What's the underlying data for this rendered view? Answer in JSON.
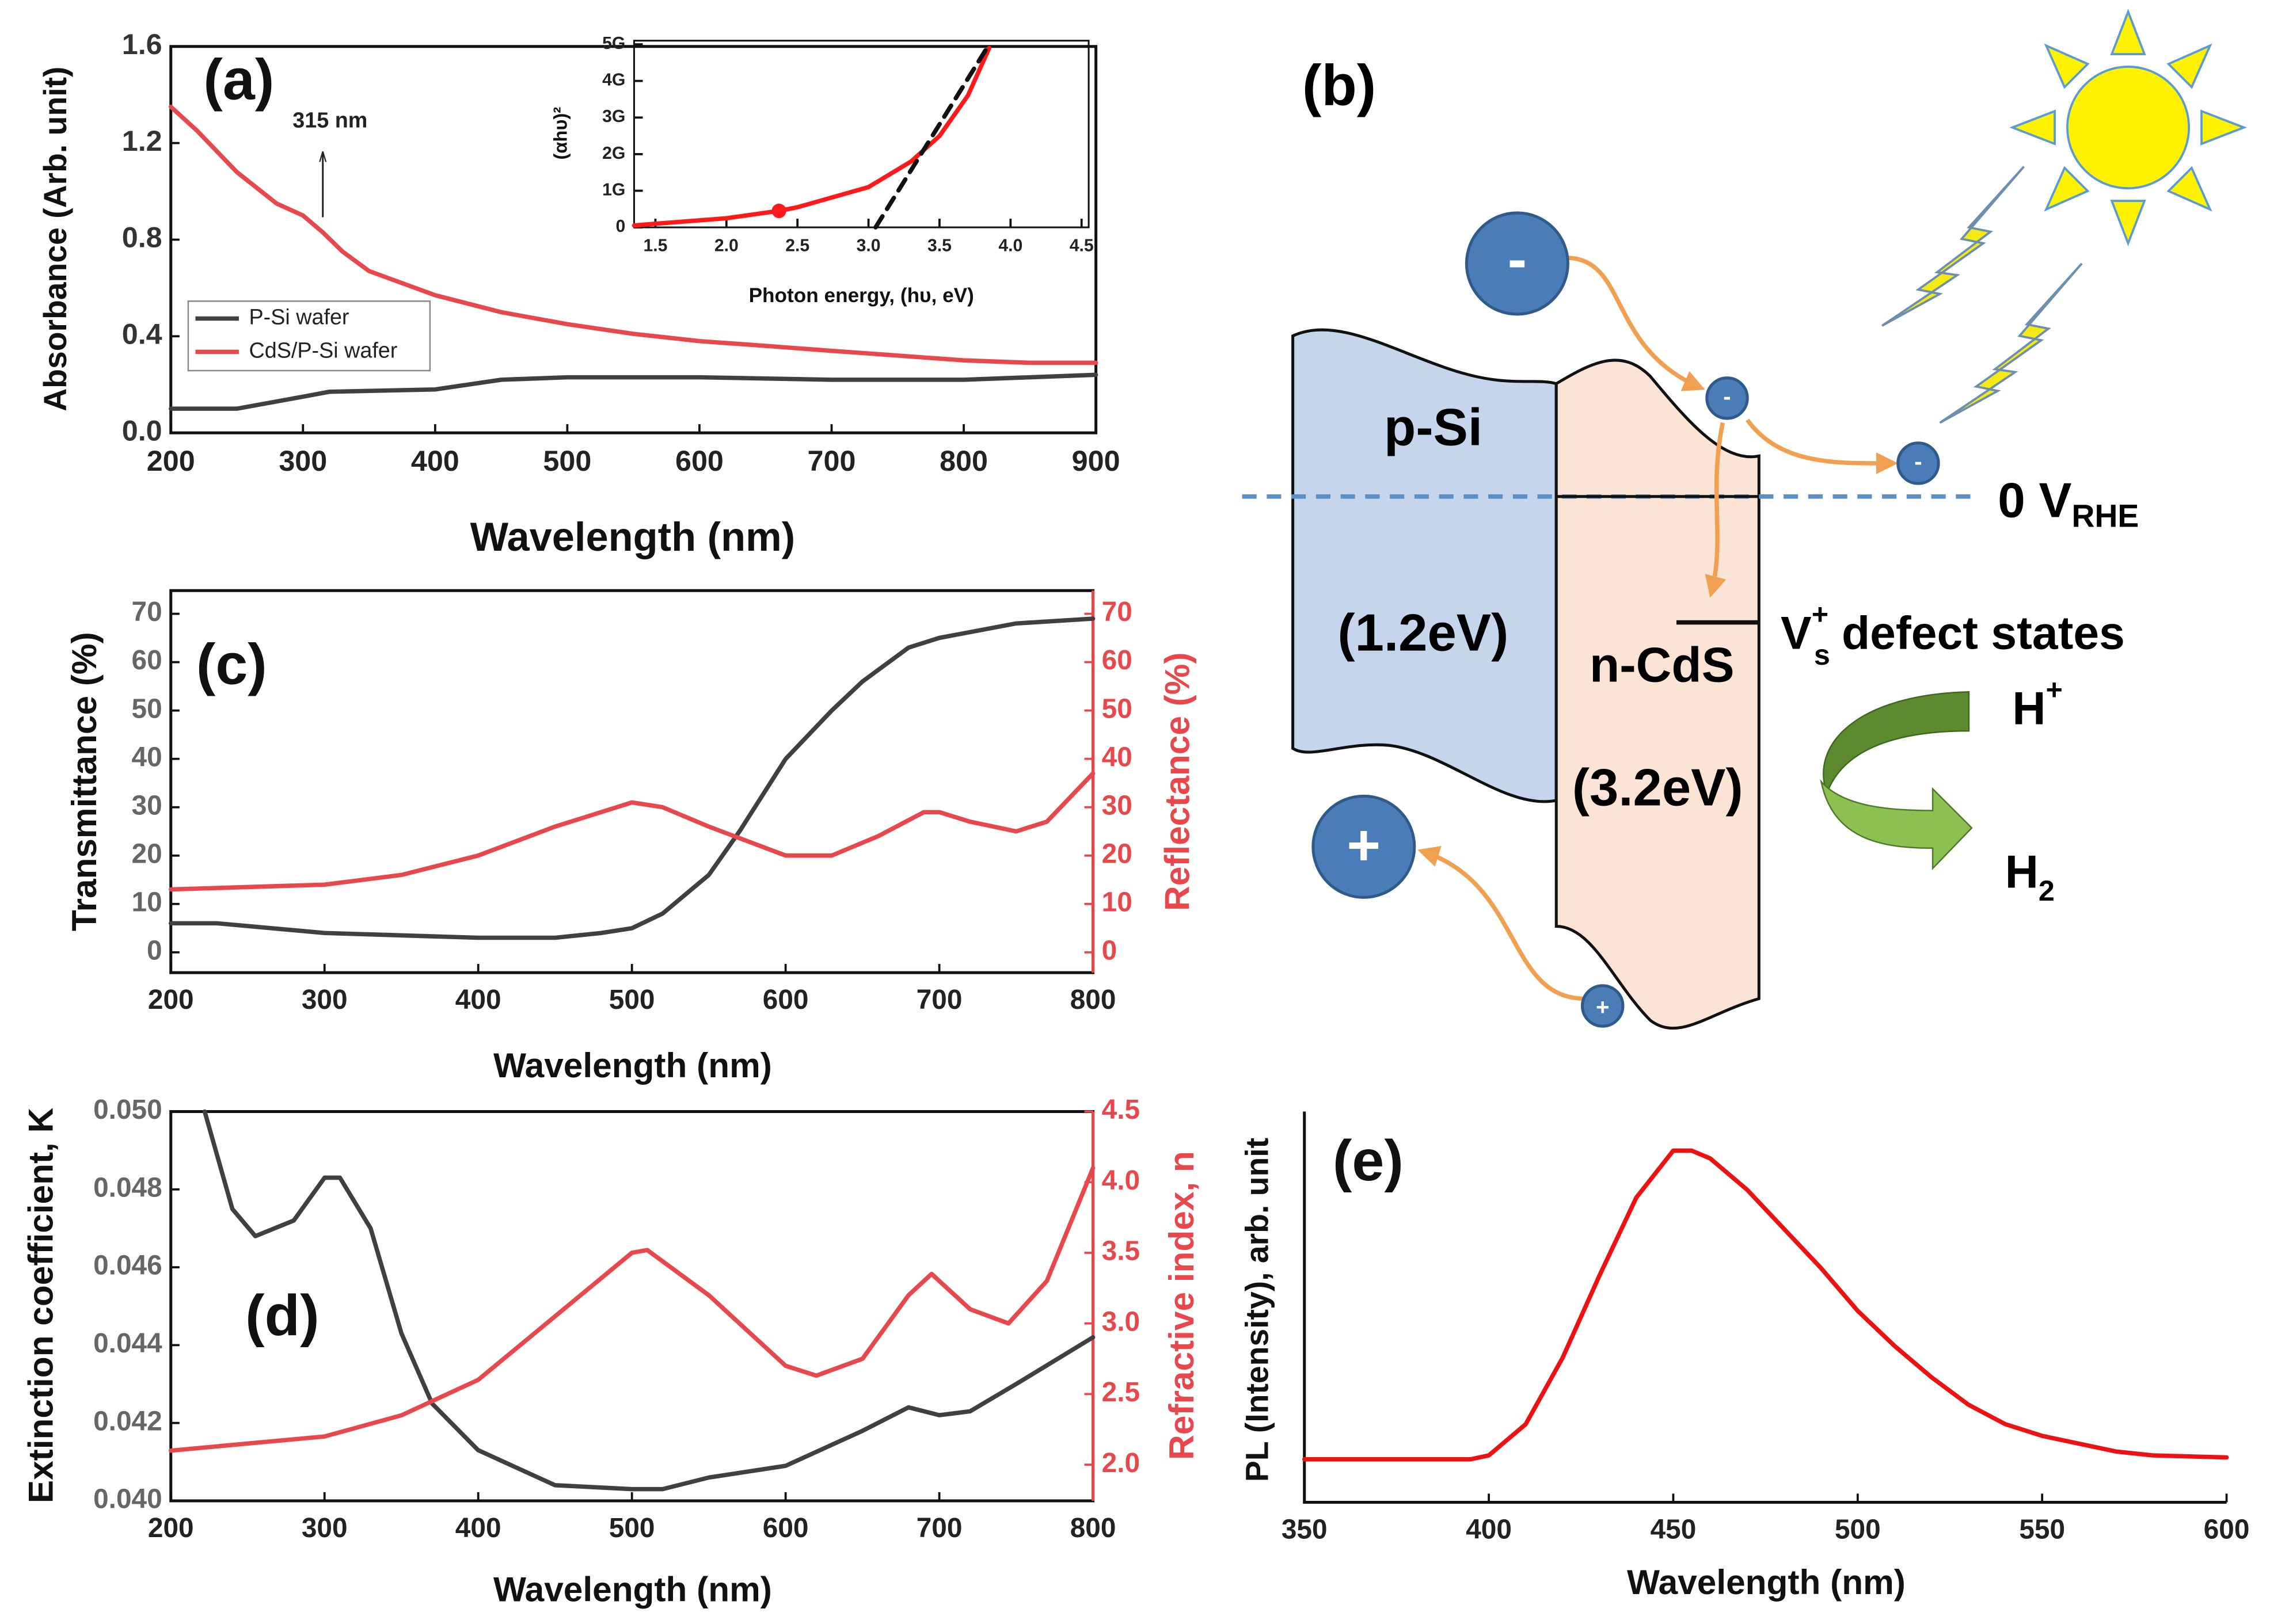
{
  "chart_data": [
    {
      "type": "line",
      "panel_label": "(a)",
      "xlabel": "Wavelength (nm)",
      "ylabel": "Absorbance (Arb. unit)",
      "xlim": [
        200,
        900
      ],
      "ylim": [
        0,
        1.6
      ],
      "xticks": [
        200,
        300,
        400,
        500,
        600,
        700,
        800,
        900
      ],
      "yticks": [
        {
          "value": 0,
          "label": "0.0"
        },
        0.4,
        0.8,
        1.2,
        1.6
      ],
      "legend": "lower left",
      "annotations": [
        {
          "text": "315 nm",
          "x": 315
        }
      ],
      "series": [
        {
          "name": "P-Si wafer",
          "color": "#404040",
          "x": [
            200,
            250,
            300,
            320,
            400,
            450,
            500,
            600,
            700,
            800,
            900
          ],
          "values": [
            0.1,
            0.1,
            0.15,
            0.17,
            0.18,
            0.22,
            0.23,
            0.23,
            0.22,
            0.22,
            0.24
          ]
        },
        {
          "name": "CdS/P-Si wafer",
          "color": "#e8474c",
          "x": [
            200,
            220,
            250,
            280,
            300,
            315,
            330,
            350,
            400,
            450,
            500,
            550,
            600,
            650,
            700,
            750,
            800,
            850,
            900
          ],
          "values": [
            1.35,
            1.25,
            1.08,
            0.95,
            0.9,
            0.83,
            0.75,
            0.67,
            0.57,
            0.5,
            0.45,
            0.41,
            0.38,
            0.36,
            0.34,
            0.32,
            0.3,
            0.29,
            0.29
          ]
        }
      ]
    },
    {
      "type": "line",
      "xlabel": "Photon energy, (hυ, eV)",
      "ylabel": "(αhυ)²",
      "xlim": [
        1.35,
        4.55
      ],
      "ylim": [
        0,
        5.1
      ],
      "xticks": [
        1.5,
        {
          "value": 2,
          "label": "2.0"
        },
        2.5,
        {
          "value": 3,
          "label": "3.0"
        },
        3.5,
        {
          "value": 4,
          "label": "4.0"
        },
        4.5
      ],
      "yticks": [
        0,
        {
          "value": 1,
          "label": "1G"
        },
        {
          "value": 2,
          "label": "2G"
        },
        {
          "value": 3,
          "label": "3G"
        },
        {
          "value": 4,
          "label": "4G"
        },
        {
          "value": 5,
          "label": "5G"
        }
      ],
      "points": [
        {
          "x": 2.37,
          "y": 0.45,
          "color": "#ff1a1a"
        }
      ],
      "series": [
        {
          "color": "#ff1a1a",
          "linestyle": "solid",
          "x": [
            1.35,
            1.5,
            2.0,
            2.37,
            2.5,
            3.0,
            3.3,
            3.5,
            3.7,
            3.85
          ],
          "values": [
            0.05,
            0.1,
            0.25,
            0.45,
            0.55,
            1.1,
            1.8,
            2.5,
            3.6,
            4.9
          ]
        },
        {
          "color": "#111111",
          "linestyle": "dashed",
          "x": [
            3.05,
            3.85
          ],
          "values": [
            0,
            5
          ]
        }
      ]
    },
    {
      "type": "line",
      "panel_label": "(c)",
      "xlabel": "Wavelength (nm)",
      "ylabel": "Transmittance (%)",
      "y2label": "Reflectance (%)",
      "xlim": [
        200,
        800
      ],
      "ylim": [
        -4.2,
        74.8
      ],
      "y2lim": [
        -4.2,
        74.8
      ],
      "xticks": [
        200,
        300,
        400,
        500,
        600,
        700,
        800
      ],
      "yticks": [
        0,
        10,
        20,
        30,
        40,
        50,
        60,
        70
      ],
      "y2ticks": [
        0,
        10,
        20,
        30,
        40,
        50,
        60,
        70
      ],
      "series": [
        {
          "color": "#404040",
          "x": [
            200,
            230,
            300,
            400,
            450,
            480,
            500,
            520,
            550,
            570,
            600,
            630,
            650,
            680,
            700,
            750,
            800
          ],
          "values": [
            6,
            6,
            4,
            3,
            3,
            4,
            5,
            8,
            16,
            25,
            40,
            50,
            56,
            63,
            65,
            68,
            69
          ]
        },
        {
          "color": "#e8474c",
          "axis": "y2",
          "x": [
            200,
            300,
            350,
            400,
            450,
            500,
            520,
            550,
            600,
            630,
            660,
            690,
            700,
            720,
            750,
            770,
            800
          ],
          "values": [
            13,
            14,
            16,
            20,
            26,
            31,
            30,
            26,
            20,
            20,
            24,
            29,
            29,
            27,
            25,
            27,
            37
          ]
        }
      ]
    },
    {
      "type": "line",
      "panel_label": "(d)",
      "xlabel": "Wavelength (nm)",
      "ylabel": "Extinction coefficient, K",
      "y2label": "Refractive index, n",
      "xlim": [
        200,
        800
      ],
      "ylim": [
        0.04,
        0.05
      ],
      "y2lim": [
        1.744,
        4.5
      ],
      "xticks": [
        200,
        300,
        400,
        500,
        600,
        700,
        800
      ],
      "yticks": [
        {
          "value": 0.04,
          "label": "0.040"
        },
        0.042,
        0.044,
        0.046,
        0.048,
        {
          "value": 0.05,
          "label": "0.050"
        }
      ],
      "y2ticks": [
        {
          "value": 2,
          "label": "2.0"
        },
        2.5,
        {
          "value": 3,
          "label": "3.0"
        },
        3.5,
        {
          "value": 4,
          "label": "4.0"
        },
        4.5
      ],
      "series": [
        {
          "color": "#404040",
          "x": [
            222,
            240,
            255,
            280,
            300,
            310,
            330,
            350,
            370,
            400,
            450,
            500,
            520,
            550,
            600,
            650,
            680,
            700,
            720,
            750,
            800
          ],
          "values": [
            0.05,
            0.0475,
            0.0468,
            0.0472,
            0.0483,
            0.0483,
            0.047,
            0.0443,
            0.0425,
            0.0413,
            0.0404,
            0.0403,
            0.0403,
            0.0406,
            0.0409,
            0.0418,
            0.0424,
            0.0422,
            0.0423,
            0.043,
            0.0442
          ]
        },
        {
          "color": "#e8474c",
          "axis": "y2",
          "x": [
            200,
            300,
            350,
            400,
            450,
            500,
            510,
            550,
            600,
            620,
            650,
            680,
            695,
            720,
            745,
            770,
            800
          ],
          "values": [
            2.1,
            2.2,
            2.35,
            2.6,
            3.05,
            3.5,
            3.52,
            3.2,
            2.7,
            2.63,
            2.75,
            3.2,
            3.35,
            3.1,
            3.0,
            3.3,
            4.1
          ]
        }
      ]
    },
    {
      "type": "line",
      "panel_label": "(e)",
      "xlabel": "Wavelength (nm)",
      "ylabel": "PL (Intensity), arb. unit",
      "xlim": [
        350,
        600
      ],
      "ylim": [
        0,
        1
      ],
      "xticks": [
        350,
        400,
        450,
        500,
        550,
        600
      ],
      "series": [
        {
          "color": "#ee1111",
          "x": [
            350,
            395,
            400,
            410,
            420,
            430,
            440,
            450,
            455,
            460,
            470,
            480,
            490,
            500,
            510,
            520,
            530,
            540,
            550,
            560,
            570,
            580,
            600
          ],
          "values": [
            0.11,
            0.11,
            0.12,
            0.2,
            0.37,
            0.58,
            0.78,
            0.9,
            0.9,
            0.88,
            0.8,
            0.7,
            0.6,
            0.49,
            0.4,
            0.32,
            0.25,
            0.2,
            0.17,
            0.15,
            0.13,
            0.12,
            0.115
          ]
        }
      ]
    }
  ],
  "diagram": {
    "panel_label": "(b)",
    "p_layer": "p-Si",
    "p_gap": "(1.2eV)",
    "n_layer": "n-CdS",
    "n_gap": "(3.2eV)",
    "potential": {
      "base": "0 V",
      "sub": "RHE"
    },
    "defect": {
      "base": "V",
      "sup": "+",
      "sub": "s",
      "text": "defect states"
    },
    "reactant": {
      "base": "H",
      "sup": "+"
    },
    "product": {
      "base": "H",
      "sub": "2"
    },
    "electron": "-",
    "hole": "+"
  }
}
